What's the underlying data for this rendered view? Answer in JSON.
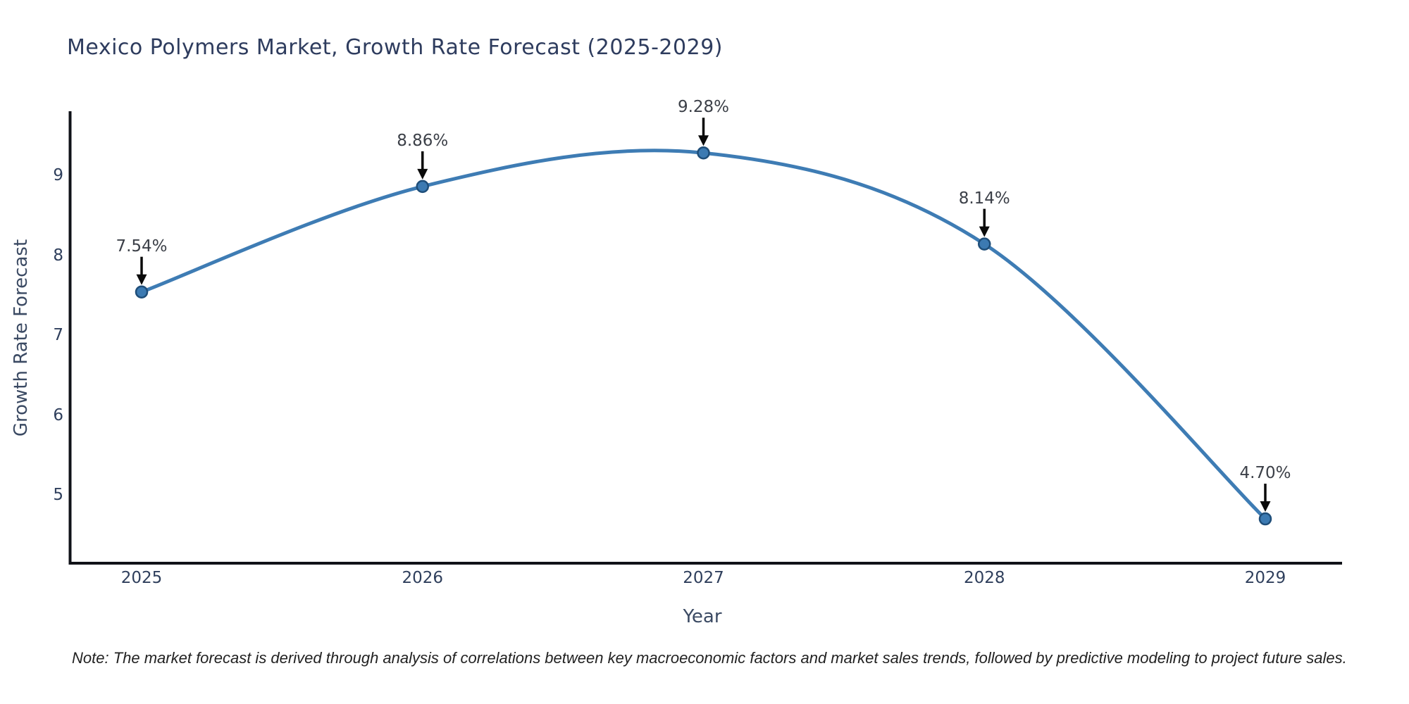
{
  "title": "Mexico Polymers Market, Growth Rate Forecast (2025-2029)",
  "note": "Note: The market forecast is derived through analysis of correlations between key macroeconomic factors and market sales trends, followed by predictive modeling to project future sales.",
  "colors": {
    "background": "#ffffff",
    "line": "#3e7cb4",
    "marker_fill": "#3c7ab2",
    "marker_edge": "#1f4e79",
    "axis_spine": "#101218",
    "arrow": "#0a0a0a",
    "title_text": "#2e3c5e",
    "tick_text": "#2f3f5c",
    "axis_title_text": "#3b4a63",
    "annotation_text": "#3c4048",
    "note_text": "#222222"
  },
  "chart_data": {
    "type": "line",
    "title": "Mexico Polymers Market, Growth Rate Forecast (2025-2029)",
    "xlabel": "Year",
    "ylabel": "Growth Rate Forecast",
    "categories": [
      "2025",
      "2026",
      "2027",
      "2028",
      "2029"
    ],
    "values": [
      7.54,
      8.86,
      9.28,
      8.14,
      4.7
    ],
    "point_labels": [
      "7.54%",
      "8.86%",
      "9.28%",
      "8.14%",
      "4.70%"
    ],
    "series_name": "Growth Rate Forecast",
    "y_ticks": [
      5,
      6,
      7,
      8,
      9
    ],
    "ylim": [
      4.1,
      9.8
    ],
    "grid": false,
    "legend_position": "none",
    "line_shape": "spline",
    "markers": true,
    "annotations_with_arrows": true
  }
}
